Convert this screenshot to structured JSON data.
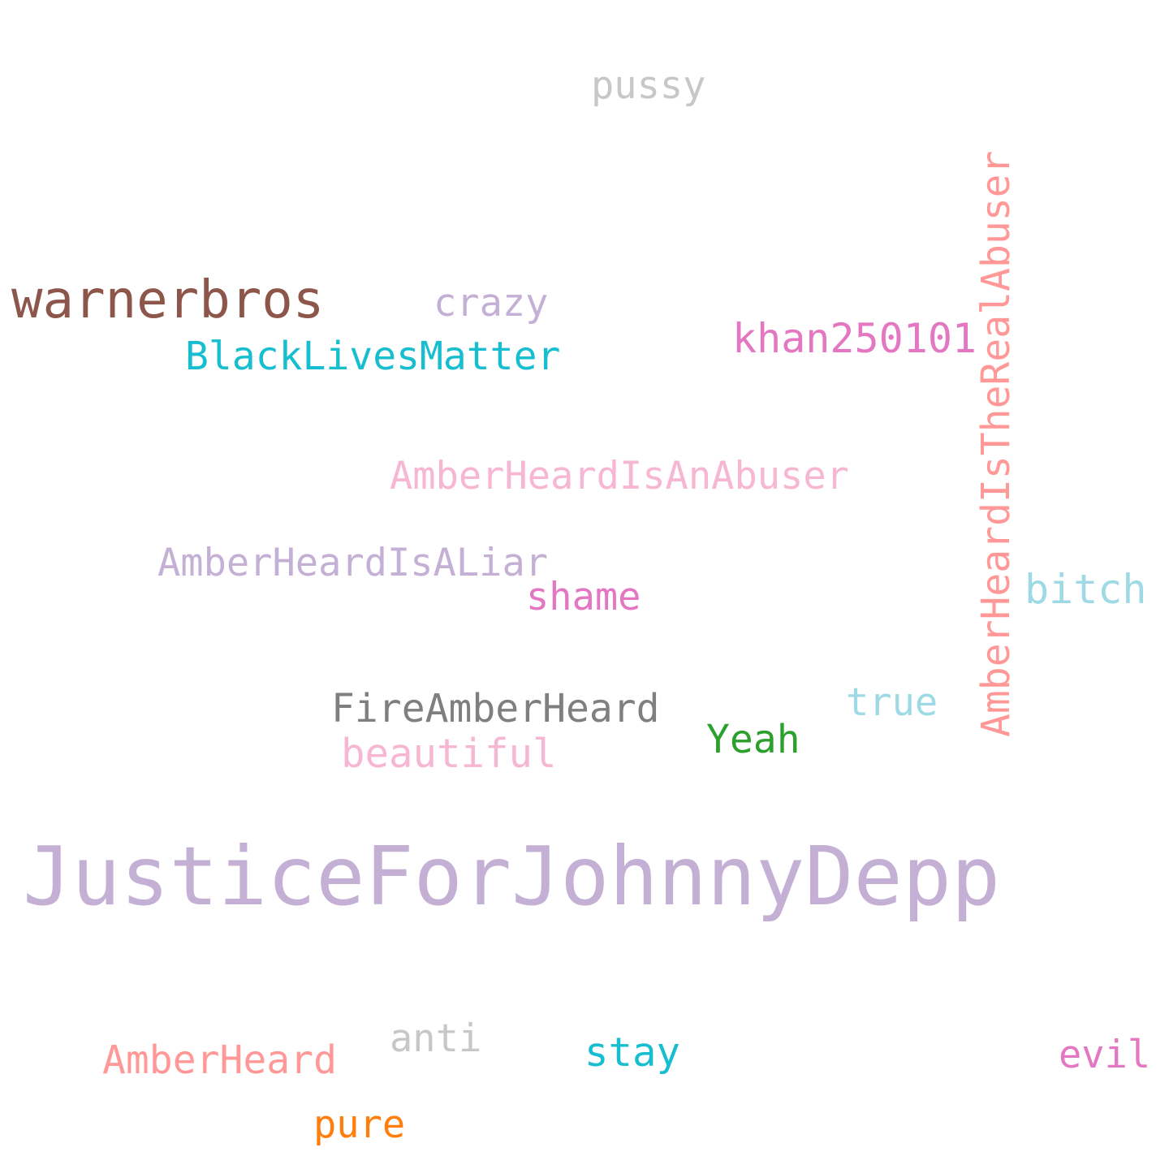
{
  "words": [
    {
      "text": "JusticeForJohnnyDepp",
      "color": "#c5b0d5"
    },
    {
      "text": "warnerbros",
      "color": "#8c564b"
    },
    {
      "text": "AmberHeardIsTheRealAbuser",
      "color": "#ff9896"
    },
    {
      "text": "khan250101",
      "color": "#e377c2"
    },
    {
      "text": "BlackLivesMatter",
      "color": "#17becf"
    },
    {
      "text": "AmberHeardIsAnAbuser",
      "color": "#f7b6d2"
    },
    {
      "text": "AmberHeardIsALiar",
      "color": "#c5b0d5"
    },
    {
      "text": "FireAmberHeard",
      "color": "#7f7f7f"
    },
    {
      "text": "pussy",
      "color": "#c7c7c7"
    },
    {
      "text": "crazy",
      "color": "#c5b0d5"
    },
    {
      "text": "shame",
      "color": "#e377c2"
    },
    {
      "text": "bitch",
      "color": "#9edae5"
    },
    {
      "text": "true",
      "color": "#9edae5"
    },
    {
      "text": "Yeah",
      "color": "#2ca02c"
    },
    {
      "text": "beautiful",
      "color": "#f7b6d2"
    },
    {
      "text": "anti",
      "color": "#c7c7c7"
    },
    {
      "text": "AmberHeard",
      "color": "#ff9896"
    },
    {
      "text": "stay",
      "color": "#17becf"
    },
    {
      "text": "evil",
      "color": "#e377c2"
    },
    {
      "text": "pure",
      "color": "#ff7f0e"
    }
  ]
}
